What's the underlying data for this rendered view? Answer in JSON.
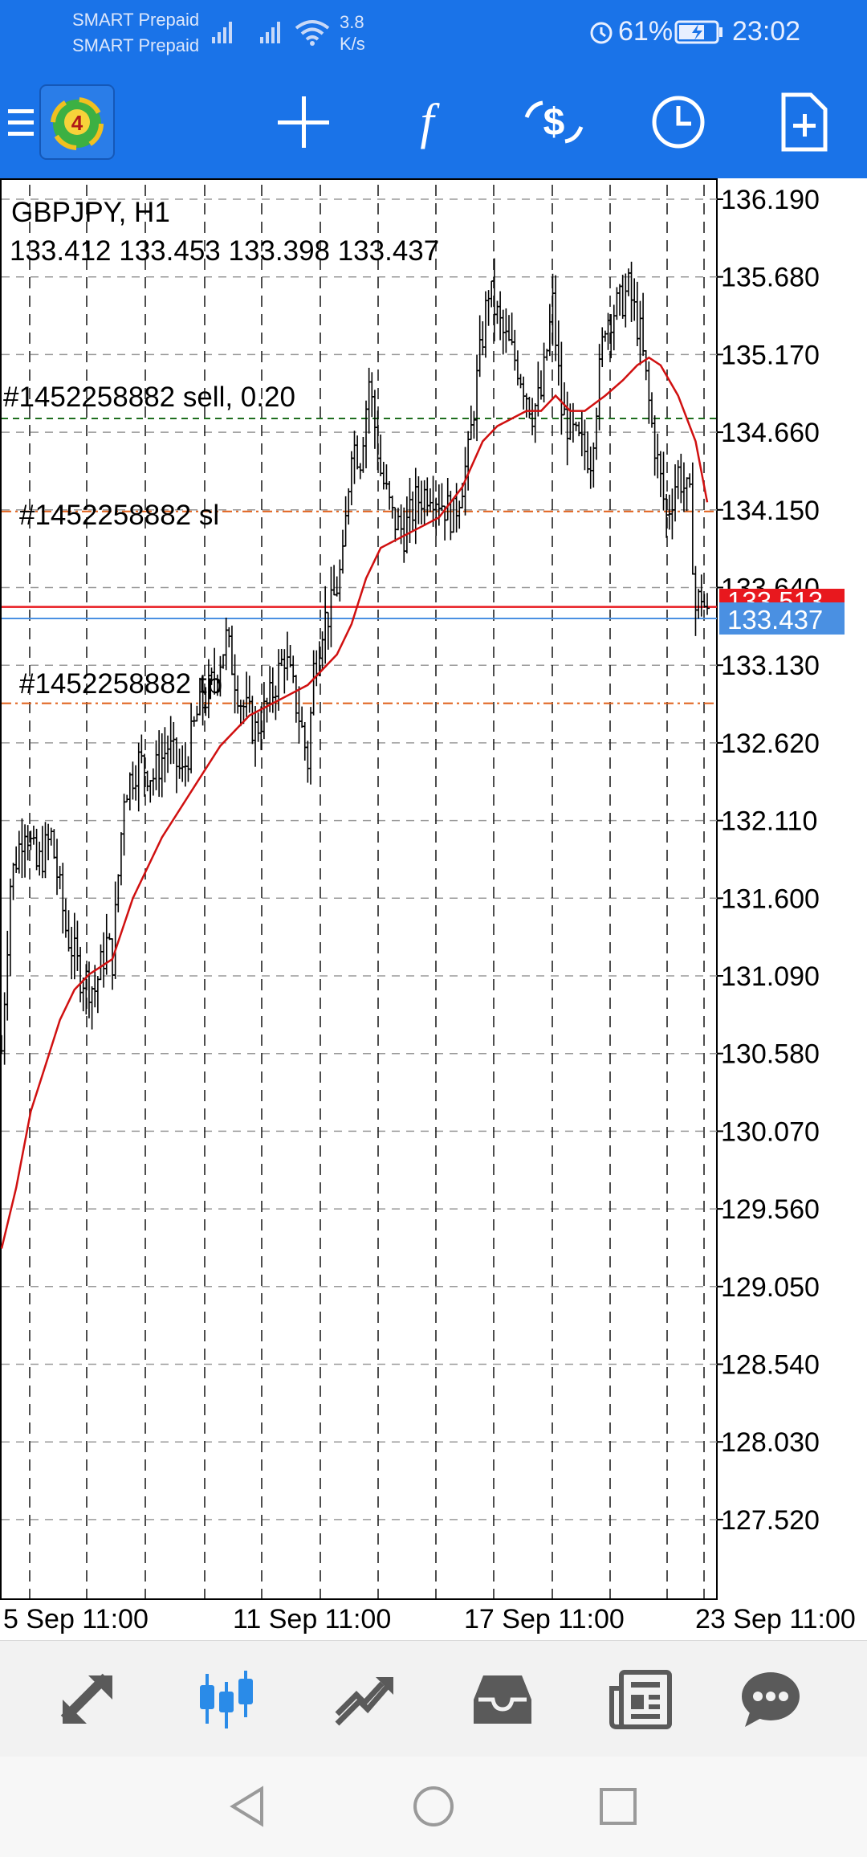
{
  "status_bar": {
    "carrier_1": "SMART Prepaid",
    "carrier_2": "SMART Prepaid",
    "speed_value": "3.8",
    "speed_unit": "K/s",
    "battery": "61%",
    "time": "23:02",
    "icons": [
      "signal-icon",
      "signal-icon",
      "wifi-icon",
      "alarm-icon",
      "battery-charging-icon"
    ]
  },
  "toolbar": {
    "icons": [
      "menu-icon",
      "mt4-logo",
      "crosshair-icon",
      "indicators-icon",
      "trade-icon",
      "timeframe-icon",
      "new-template-icon"
    ]
  },
  "chart": {
    "symbol_line": "GBPJPY, H1",
    "ohlc_line": "133.412 133.453 133.398 133.437",
    "order_label": "#1452258882 sell, 0.20",
    "sl_label": "#1452258882 sl",
    "tp_label": "#1452258882 tp",
    "ask_label": "133.513",
    "bid_label": "133.437",
    "colors": {
      "background": "#ffffff",
      "grid": "#000000",
      "ma": "#d01010",
      "ask": "#e8181e",
      "bid": "#4a90e2",
      "order": "#1e6e1e",
      "sl_tp": "#e0601a"
    }
  },
  "chart_data": {
    "type": "candlestick",
    "symbol": "GBPJPY",
    "timeframe": "H1",
    "y_ticks": [
      "136.190",
      "135.680",
      "135.170",
      "134.660",
      "134.150",
      "133.640",
      "133.130",
      "132.620",
      "132.110",
      "131.600",
      "131.090",
      "130.580",
      "130.070",
      "129.560",
      "129.050",
      "128.540",
      "128.030",
      "127.520"
    ],
    "x_ticks": [
      "5 Sep 11:00",
      "11 Sep 11:00",
      "17 Sep 11:00",
      "23 Sep 11:00"
    ],
    "ylim": [
      127.2,
      136.32
    ],
    "last_bar": {
      "open": 133.412,
      "high": 133.453,
      "low": 133.398,
      "close": 133.437
    },
    "levels": {
      "order_sell": 134.75,
      "stop_loss": 134.14,
      "take_profit": 132.88,
      "ask": 133.513,
      "bid": 133.437
    },
    "price_path": [
      [
        0,
        130.6
      ],
      [
        3,
        131.7
      ],
      [
        8,
        132.1
      ],
      [
        12,
        131.8
      ],
      [
        17,
        132.0
      ],
      [
        22,
        131.4
      ],
      [
        27,
        131.1
      ],
      [
        32,
        131.0
      ],
      [
        36,
        131.3
      ],
      [
        38,
        131.2
      ],
      [
        42,
        132.3
      ],
      [
        47,
        132.5
      ],
      [
        52,
        132.4
      ],
      [
        57,
        132.6
      ],
      [
        62,
        132.4
      ],
      [
        67,
        132.8
      ],
      [
        72,
        133.0
      ],
      [
        77,
        133.3
      ],
      [
        82,
        132.9
      ],
      [
        87,
        132.7
      ],
      [
        92,
        132.9
      ],
      [
        97,
        133.2
      ],
      [
        102,
        132.8
      ],
      [
        105,
        132.5
      ],
      [
        107,
        133.1
      ],
      [
        110,
        133.4
      ],
      [
        113,
        133.5
      ],
      [
        117,
        133.8
      ],
      [
        120,
        134.6
      ],
      [
        123,
        134.5
      ],
      [
        126,
        135.0
      ],
      [
        130,
        134.4
      ],
      [
        134,
        134.1
      ],
      [
        138,
        134.0
      ],
      [
        142,
        134.2
      ],
      [
        147,
        134.3
      ],
      [
        151,
        134.2
      ],
      [
        155,
        134.1
      ],
      [
        160,
        134.5
      ],
      [
        163,
        135.0
      ],
      [
        167,
        135.6
      ],
      [
        172,
        135.3
      ],
      [
        177,
        135.1
      ],
      [
        182,
        134.8
      ],
      [
        185,
        134.9
      ],
      [
        189,
        135.5
      ],
      [
        192,
        134.8
      ],
      [
        197,
        134.6
      ],
      [
        202,
        134.5
      ],
      [
        207,
        135.4
      ],
      [
        212,
        135.5
      ],
      [
        215,
        135.6
      ],
      [
        219,
        135.3
      ],
      [
        223,
        134.7
      ],
      [
        228,
        134.1
      ],
      [
        232,
        134.4
      ],
      [
        236,
        134.2
      ],
      [
        238,
        133.5
      ],
      [
        240,
        133.6
      ],
      [
        242,
        133.437
      ]
    ],
    "moving_average": [
      [
        0,
        129.3
      ],
      [
        5,
        129.7
      ],
      [
        10,
        130.2
      ],
      [
        15,
        130.5
      ],
      [
        20,
        130.8
      ],
      [
        25,
        131.0
      ],
      [
        30,
        131.1
      ],
      [
        38,
        131.2
      ],
      [
        45,
        131.6
      ],
      [
        55,
        132.0
      ],
      [
        65,
        132.3
      ],
      [
        75,
        132.6
      ],
      [
        85,
        132.8
      ],
      [
        95,
        132.9
      ],
      [
        105,
        133.0
      ],
      [
        115,
        133.2
      ],
      [
        120,
        133.4
      ],
      [
        125,
        133.7
      ],
      [
        130,
        133.9
      ],
      [
        140,
        134.0
      ],
      [
        150,
        134.1
      ],
      [
        158,
        134.3
      ],
      [
        165,
        134.6
      ],
      [
        170,
        134.7
      ],
      [
        180,
        134.8
      ],
      [
        185,
        134.8
      ],
      [
        190,
        134.9
      ],
      [
        195,
        134.8
      ],
      [
        200,
        134.8
      ],
      [
        207,
        134.9
      ],
      [
        213,
        135.0
      ],
      [
        218,
        135.1
      ],
      [
        222,
        135.15
      ],
      [
        226,
        135.1
      ],
      [
        232,
        134.9
      ],
      [
        238,
        134.6
      ],
      [
        242,
        134.2
      ]
    ]
  },
  "bottom_nav": {
    "items": [
      "quotes-icon",
      "chart-icon",
      "trade-icon",
      "history-icon",
      "news-icon",
      "chat-icon"
    ]
  },
  "system_nav": {
    "items": [
      "back-icon",
      "home-icon",
      "recents-icon"
    ]
  }
}
